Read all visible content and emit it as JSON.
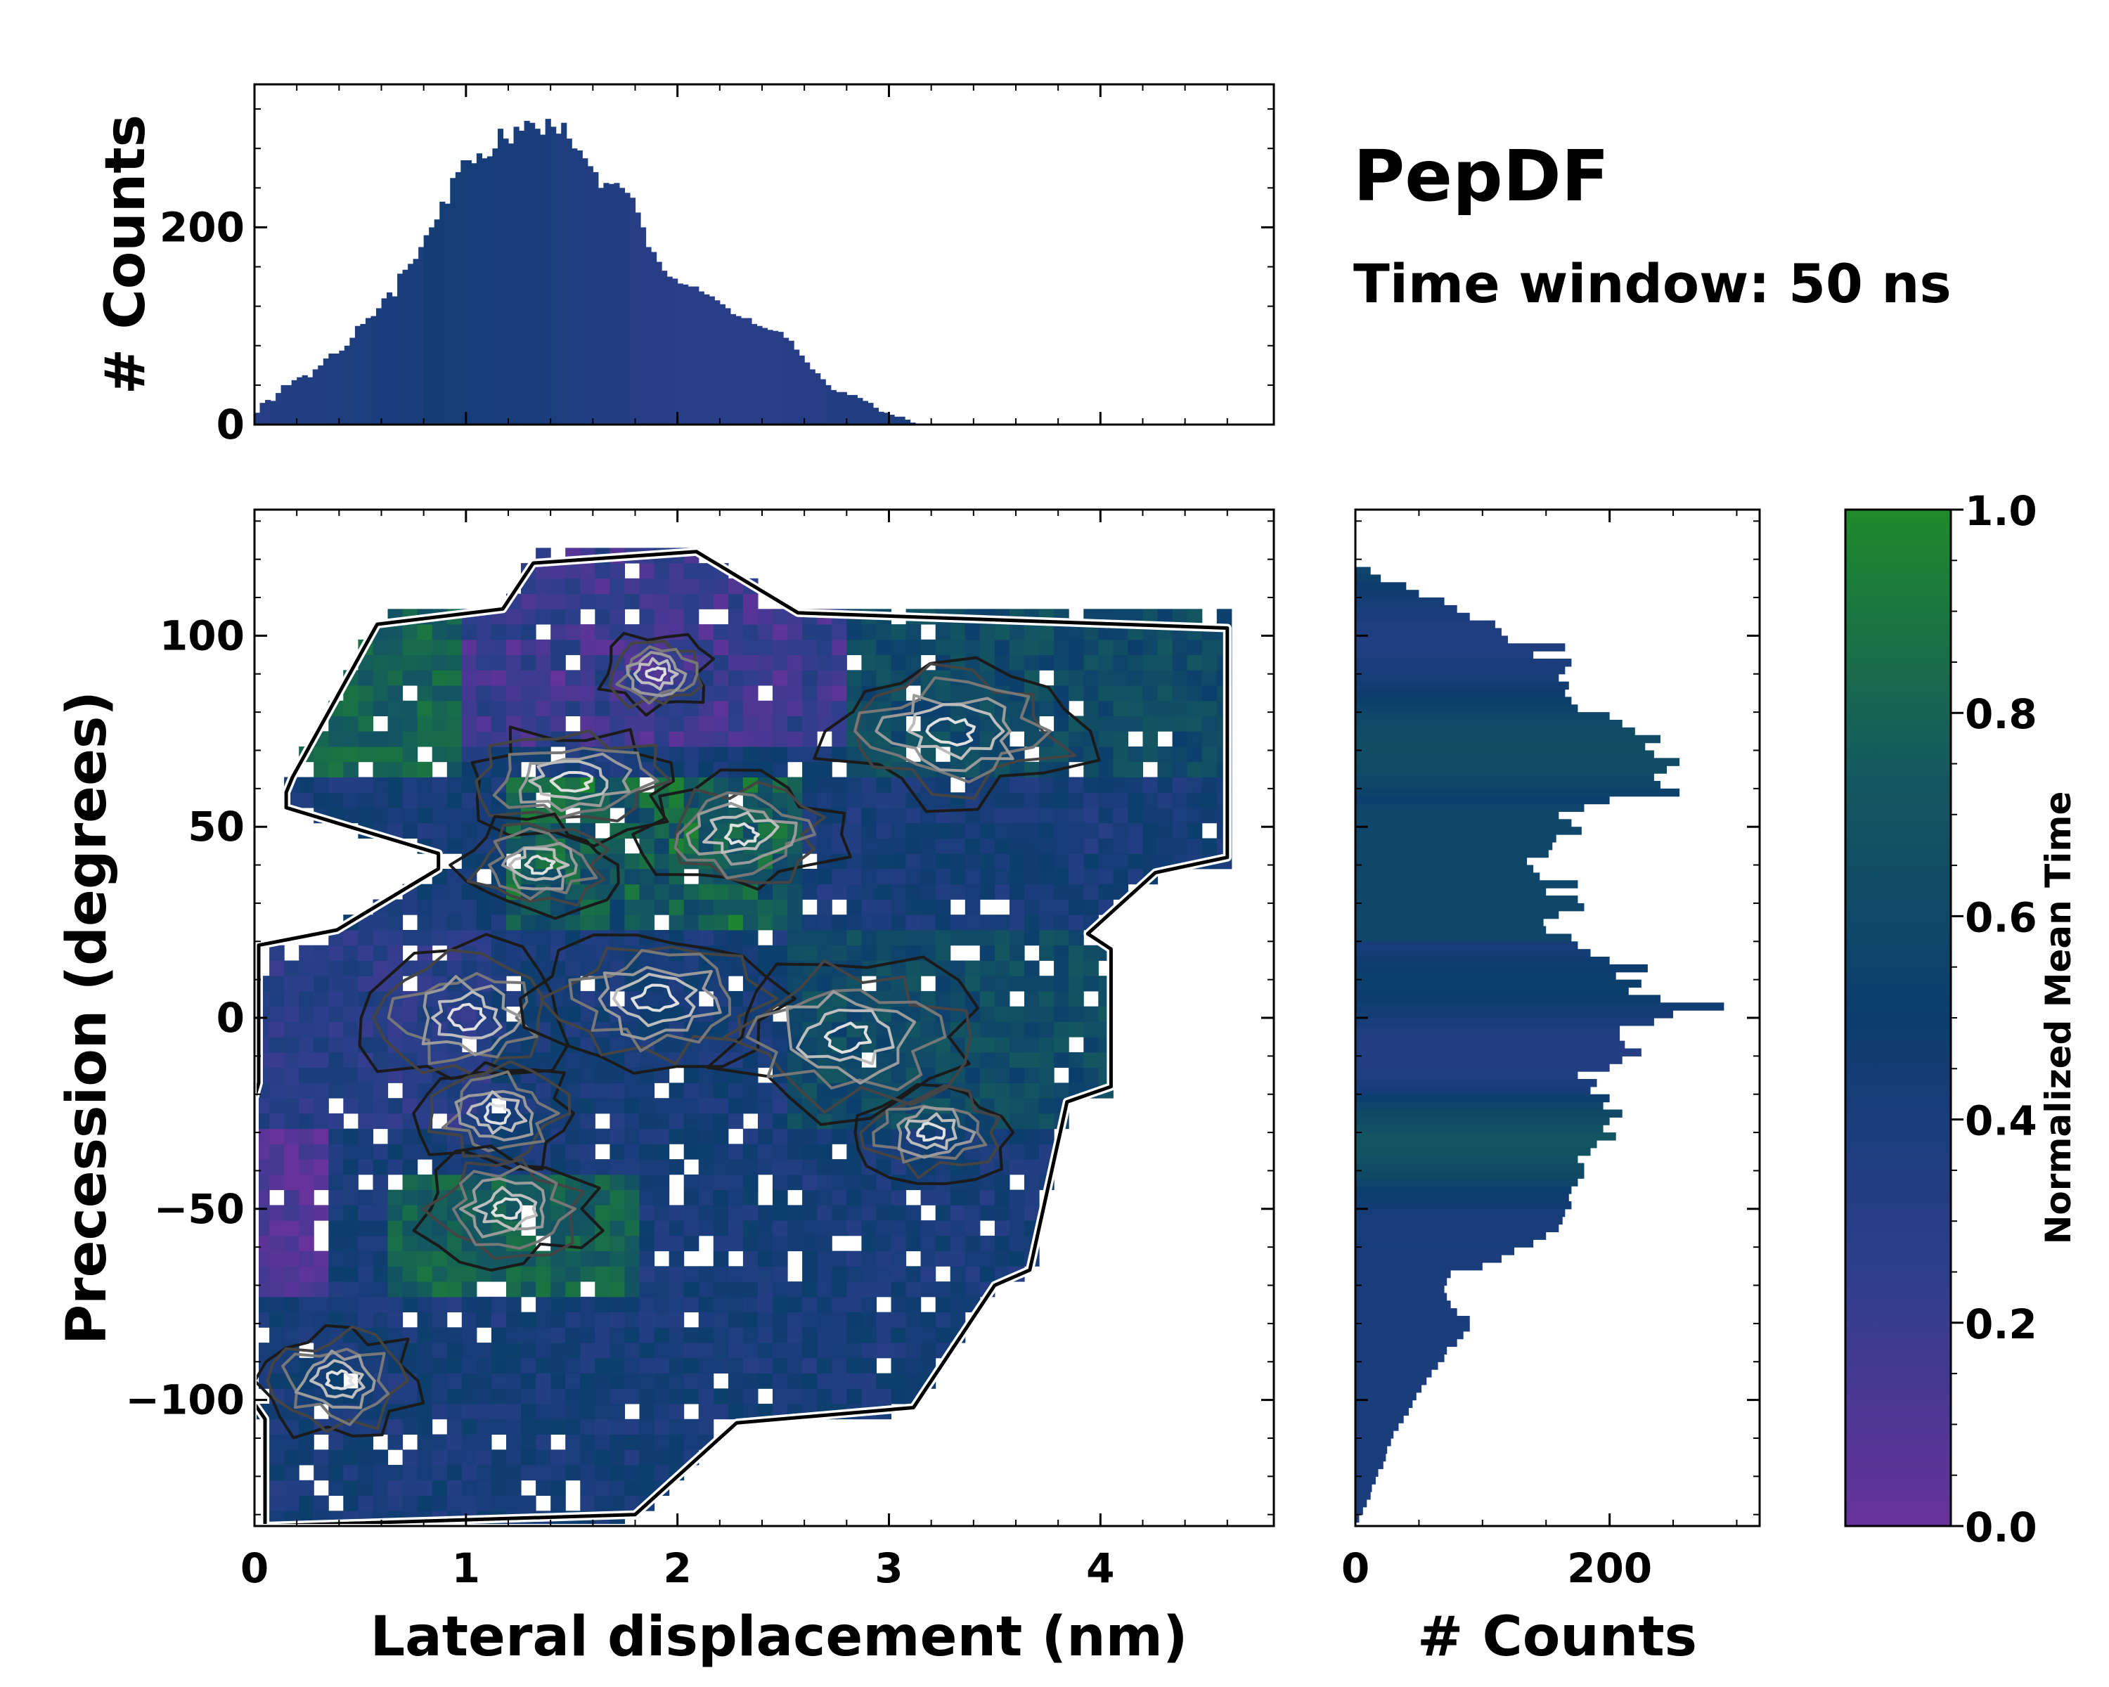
{
  "chart_data": {
    "type": "heatmap",
    "title": "PepDF",
    "subtitle": "Time window: 50 ns",
    "main": {
      "xlabel": "Lateral displacement (nm)",
      "ylabel": "Precession (degrees)",
      "xlim": [
        0,
        4.82
      ],
      "ylim": [
        -133,
        133
      ],
      "xticks": [
        "0",
        "1",
        "2",
        "3",
        "4"
      ],
      "yticks": [
        "−100",
        "−50",
        "0",
        "50",
        "100"
      ],
      "ytick_values": [
        -100,
        -50,
        0,
        50,
        100
      ],
      "xtick_values": [
        0,
        1,
        2,
        3,
        4
      ],
      "note": "2D histogram of lateral displacement vs precession, colored by normalized mean time, overlaid with density contours"
    },
    "top_histogram": {
      "type": "bar",
      "ylabel": "# Counts",
      "yticks": [
        "0",
        "200"
      ],
      "ytick_values": [
        0,
        200
      ],
      "ylim": [
        0,
        345
      ],
      "x_start": 0,
      "bin_width": 0.025,
      "counts": [
        12,
        22,
        25,
        24,
        32,
        40,
        40,
        45,
        48,
        50,
        48,
        56,
        60,
        67,
        72,
        72,
        75,
        80,
        88,
        100,
        102,
        108,
        110,
        118,
        128,
        134,
        130,
        153,
        157,
        163,
        168,
        180,
        192,
        200,
        208,
        226,
        224,
        250,
        256,
        268,
        268,
        265,
        275,
        270,
        272,
        280,
        300,
        290,
        285,
        302,
        298,
        308,
        306,
        300,
        294,
        310,
        302,
        295,
        306,
        290,
        280,
        278,
        270,
        262,
        256,
        240,
        245,
        244,
        245,
        240,
        235,
        230,
        215,
        200,
        180,
        175,
        165,
        156,
        150,
        148,
        143,
        142,
        140,
        140,
        135,
        132,
        130,
        126,
        122,
        118,
        112,
        110,
        108,
        108,
        102,
        100,
        98,
        96,
        95,
        94,
        88,
        85,
        76,
        70,
        63,
        56,
        52,
        46,
        40,
        35,
        33,
        33,
        30,
        30,
        27,
        24,
        22,
        17,
        13,
        12,
        10,
        8,
        8,
        5,
        2,
        1
      ]
    },
    "side_histogram": {
      "type": "barh",
      "xlabel": "# Counts",
      "xticks": [
        "0",
        "200"
      ],
      "xtick_values": [
        0,
        200
      ],
      "xlim": [
        0,
        318
      ],
      "y_start": -132,
      "bin_width": 2,
      "counts": [
        3,
        6,
        9,
        12,
        13,
        16,
        18,
        22,
        24,
        25,
        28,
        30,
        34,
        38,
        42,
        45,
        48,
        52,
        56,
        60,
        65,
        70,
        72,
        80,
        85,
        90,
        90,
        80,
        75,
        72,
        70,
        72,
        75,
        100,
        115,
        125,
        140,
        150,
        160,
        163,
        165,
        170,
        168,
        170,
        175,
        180,
        180,
        175,
        185,
        190,
        205,
        195,
        200,
        210,
        195,
        200,
        185,
        190,
        175,
        200,
        210,
        225,
        212,
        208,
        208,
        235,
        250,
        290,
        240,
        215,
        225,
        205,
        230,
        200,
        185,
        175,
        170,
        150,
        148,
        160,
        180,
        175,
        150,
        175,
        145,
        140,
        135,
        152,
        155,
        158,
        178,
        170,
        160,
        180,
        200,
        255,
        240,
        235,
        245,
        255,
        235,
        228,
        240,
        220,
        210,
        200,
        175,
        170,
        165,
        168,
        160,
        165,
        170,
        140,
        165,
        120,
        115,
        110,
        90,
        80,
        70,
        50,
        40,
        20,
        12
      ]
    },
    "colorbar": {
      "label": "Normalized Mean Time",
      "ticks": [
        "0.0",
        "0.2",
        "0.4",
        "0.6",
        "0.8",
        "1.0"
      ],
      "tick_values": [
        0.0,
        0.2,
        0.4,
        0.6,
        0.8,
        1.0
      ],
      "range": [
        0,
        1
      ],
      "colormap": [
        "#67329a",
        "#2d3e8c",
        "#0c3d6e",
        "#145a5e",
        "#1f8a2a"
      ]
    }
  }
}
